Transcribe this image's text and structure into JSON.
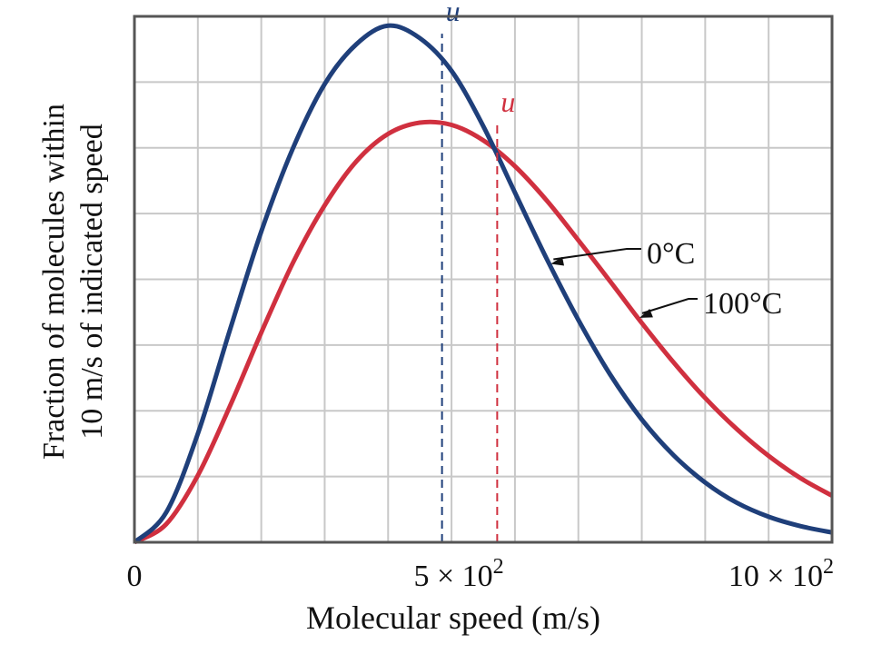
{
  "chart_data": {
    "type": "line",
    "xlabel": "Molecular speed (m/s)",
    "ylabel_line1": "Fraction of molecules within",
    "ylabel_line2": "10 m/s of indicated speed",
    "xlim": [
      0,
      1100
    ],
    "ylim": [
      0,
      1.4
    ],
    "grid": true,
    "x_ticks": [
      {
        "value": 0,
        "label": "0"
      },
      {
        "value": 500,
        "base": "5 × 10",
        "exp": "2"
      },
      {
        "value": 1000,
        "base": "10 × 10",
        "exp": "2"
      }
    ],
    "series": [
      {
        "name": "0°C",
        "color": "#1f3f7a",
        "x": [
          0,
          50,
          100,
          150,
          200,
          250,
          300,
          350,
          400,
          450,
          500,
          550,
          600,
          650,
          700,
          750,
          800,
          850,
          900,
          950,
          1000,
          1050,
          1100
        ],
        "y": [
          0,
          0.079,
          0.289,
          0.562,
          0.827,
          1.049,
          1.22,
          1.326,
          1.375,
          1.342,
          1.255,
          1.108,
          0.931,
          0.755,
          0.592,
          0.447,
          0.327,
          0.232,
          0.159,
          0.105,
          0.068,
          0.043,
          0.026
        ],
        "mean_speed_label": "u",
        "mean_speed": 485
      },
      {
        "name": "100°C",
        "color": "#d0303f",
        "x": [
          0,
          50,
          100,
          150,
          200,
          250,
          300,
          350,
          400,
          450,
          500,
          550,
          600,
          650,
          700,
          750,
          800,
          850,
          900,
          950,
          1000,
          1050,
          1100
        ],
        "y": [
          0,
          0.048,
          0.178,
          0.36,
          0.558,
          0.744,
          0.897,
          1.014,
          1.087,
          1.117,
          1.111,
          1.07,
          1.001,
          0.91,
          0.804,
          0.695,
          0.584,
          0.479,
          0.384,
          0.301,
          0.23,
          0.171,
          0.124
        ],
        "mean_speed_label": "u",
        "mean_speed": 572
      }
    ]
  }
}
